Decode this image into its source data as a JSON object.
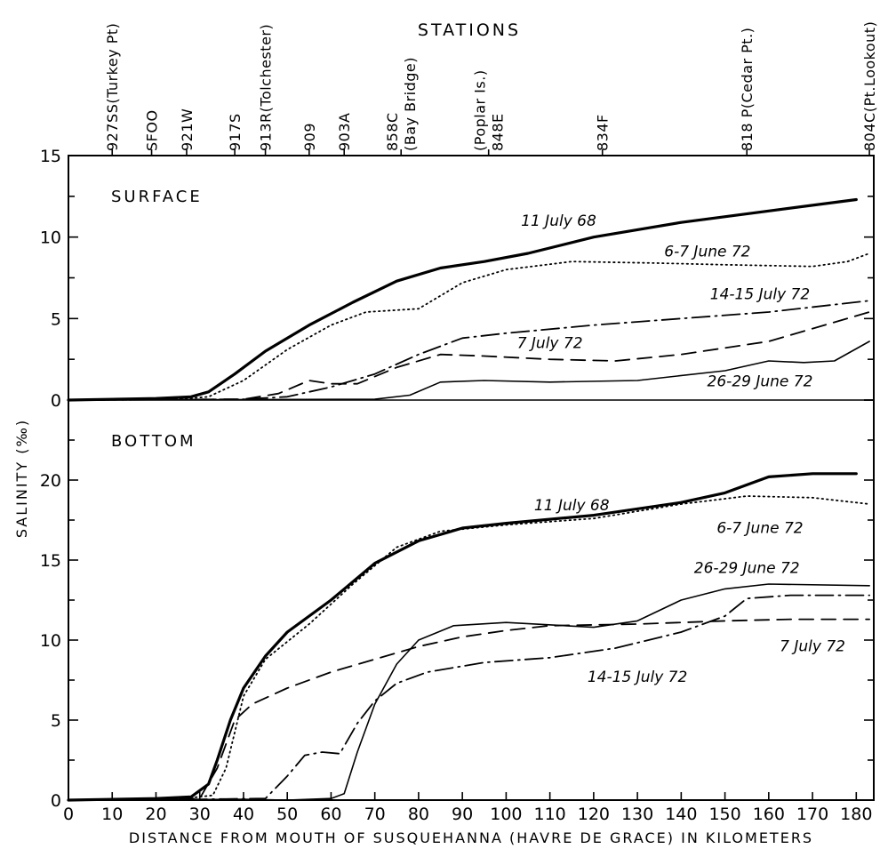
{
  "chart_data": {
    "type": "line",
    "header": "STATIONS",
    "xlabel": "DISTANCE FROM MOUTH OF SUSQUEHANNA (HAVRE DE GRACE) IN KILOMETERS",
    "ylabel": "SALINITY (‰)",
    "x_ticks": [
      0,
      10,
      20,
      30,
      40,
      50,
      60,
      70,
      80,
      90,
      100,
      110,
      120,
      130,
      140,
      150,
      160,
      170,
      180
    ],
    "xlim": [
      0,
      184
    ],
    "stations": [
      {
        "x": 10,
        "lines": [
          "927SS(Turkey Pt)"
        ]
      },
      {
        "x": 19,
        "lines": [
          "SFOO"
        ]
      },
      {
        "x": 27,
        "lines": [
          "921W"
        ]
      },
      {
        "x": 38,
        "lines": [
          "917S"
        ]
      },
      {
        "x": 45,
        "lines": [
          "913R(Tolchester)"
        ]
      },
      {
        "x": 55,
        "lines": [
          "909"
        ]
      },
      {
        "x": 63,
        "lines": [
          "903A"
        ]
      },
      {
        "x": 76,
        "lines": [
          "858C",
          "(Bay Bridge)"
        ]
      },
      {
        "x": 96,
        "lines": [
          "(Poplar Is.)",
          "848E"
        ]
      },
      {
        "x": 122,
        "lines": [
          "834F"
        ]
      },
      {
        "x": 155,
        "lines": [
          "818 P(Cedar Pt.)"
        ]
      },
      {
        "x": 183,
        "lines": [
          "804C(Pt.Lookout)"
        ]
      }
    ],
    "panels": [
      {
        "label": "SURFACE",
        "ylim": [
          0,
          15
        ],
        "y_ticks": [
          0,
          5,
          10,
          15
        ],
        "series": [
          {
            "name": "11 July 68",
            "style": "solid-thick",
            "points": [
              [
                0,
                0
              ],
              [
                20,
                0.1
              ],
              [
                28,
                0.2
              ],
              [
                32,
                0.5
              ],
              [
                38,
                1.6
              ],
              [
                45,
                3.0
              ],
              [
                55,
                4.6
              ],
              [
                65,
                6.0
              ],
              [
                75,
                7.3
              ],
              [
                85,
                8.1
              ],
              [
                95,
                8.5
              ],
              [
                105,
                9.0
              ],
              [
                120,
                10.0
              ],
              [
                140,
                10.9
              ],
              [
                160,
                11.6
              ],
              [
                180,
                12.3
              ]
            ]
          },
          {
            "name": "6-7 June 72",
            "style": "dotted",
            "points": [
              [
                0,
                0
              ],
              [
                25,
                0.05
              ],
              [
                32,
                0.2
              ],
              [
                40,
                1.2
              ],
              [
                50,
                3.1
              ],
              [
                60,
                4.6
              ],
              [
                68,
                5.4
              ],
              [
                80,
                5.6
              ],
              [
                90,
                7.2
              ],
              [
                100,
                8.0
              ],
              [
                115,
                8.5
              ],
              [
                135,
                8.4
              ],
              [
                150,
                8.3
              ],
              [
                170,
                8.2
              ],
              [
                178,
                8.5
              ],
              [
                183,
                9.0
              ]
            ]
          },
          {
            "name": "14-15 July 72",
            "style": "dash-dot",
            "points": [
              [
                0,
                0
              ],
              [
                40,
                0.05
              ],
              [
                50,
                0.2
              ],
              [
                60,
                0.8
              ],
              [
                70,
                1.6
              ],
              [
                80,
                2.8
              ],
              [
                90,
                3.8
              ],
              [
                100,
                4.1
              ],
              [
                120,
                4.6
              ],
              [
                140,
                5.0
              ],
              [
                160,
                5.4
              ],
              [
                183,
                6.1
              ]
            ]
          },
          {
            "name": "7 July 72",
            "style": "dashed",
            "points": [
              [
                0,
                0
              ],
              [
                40,
                0.05
              ],
              [
                48,
                0.4
              ],
              [
                55,
                1.2
              ],
              [
                60,
                1.0
              ],
              [
                66,
                1.0
              ],
              [
                75,
                2.0
              ],
              [
                85,
                2.8
              ],
              [
                95,
                2.7
              ],
              [
                110,
                2.5
              ],
              [
                125,
                2.4
              ],
              [
                140,
                2.8
              ],
              [
                160,
                3.6
              ],
              [
                183,
                5.4
              ]
            ]
          },
          {
            "name": "26-29 June 72",
            "style": "solid-thin",
            "points": [
              [
                0,
                0
              ],
              [
                70,
                0.05
              ],
              [
                78,
                0.3
              ],
              [
                85,
                1.1
              ],
              [
                95,
                1.2
              ],
              [
                110,
                1.1
              ],
              [
                130,
                1.2
              ],
              [
                150,
                1.8
              ],
              [
                160,
                2.4
              ],
              [
                168,
                2.3
              ],
              [
                175,
                2.4
              ],
              [
                183,
                3.6
              ]
            ]
          }
        ]
      },
      {
        "label": "BOTTOM",
        "ylim": [
          0,
          25
        ],
        "y_ticks": [
          0,
          5,
          10,
          15,
          20
        ],
        "series": [
          {
            "name": "11 July 68",
            "style": "solid-thick",
            "points": [
              [
                0,
                0
              ],
              [
                20,
                0.1
              ],
              [
                28,
                0.2
              ],
              [
                32,
                1.0
              ],
              [
                34,
                2.5
              ],
              [
                37,
                5.0
              ],
              [
                40,
                7.0
              ],
              [
                45,
                9.0
              ],
              [
                50,
                10.5
              ],
              [
                60,
                12.5
              ],
              [
                70,
                14.8
              ],
              [
                80,
                16.2
              ],
              [
                90,
                17.0
              ],
              [
                100,
                17.3
              ],
              [
                120,
                17.8
              ],
              [
                140,
                18.6
              ],
              [
                150,
                19.2
              ],
              [
                160,
                20.2
              ],
              [
                170,
                20.4
              ],
              [
                180,
                20.4
              ]
            ]
          },
          {
            "name": "6-7 June 72",
            "style": "dotted",
            "points": [
              [
                0,
                0
              ],
              [
                25,
                0.05
              ],
              [
                33,
                0.3
              ],
              [
                36,
                2.0
              ],
              [
                40,
                6.5
              ],
              [
                45,
                8.8
              ],
              [
                55,
                11.0
              ],
              [
                65,
                13.5
              ],
              [
                75,
                15.8
              ],
              [
                85,
                16.8
              ],
              [
                100,
                17.2
              ],
              [
                120,
                17.6
              ],
              [
                140,
                18.5
              ],
              [
                155,
                19.0
              ],
              [
                170,
                18.9
              ],
              [
                183,
                18.5
              ]
            ]
          },
          {
            "name": "26-29 June 72",
            "style": "solid-thin",
            "points": [
              [
                0,
                0
              ],
              [
                40,
                0.05
              ],
              [
                50,
                0
              ],
              [
                60,
                0.1
              ],
              [
                63,
                0.4
              ],
              [
                66,
                3.0
              ],
              [
                70,
                6.0
              ],
              [
                75,
                8.5
              ],
              [
                80,
                10.0
              ],
              [
                88,
                10.9
              ],
              [
                100,
                11.1
              ],
              [
                120,
                10.8
              ],
              [
                130,
                11.2
              ],
              [
                140,
                12.5
              ],
              [
                150,
                13.2
              ],
              [
                160,
                13.5
              ],
              [
                183,
                13.4
              ]
            ]
          },
          {
            "name": "7 July 72",
            "style": "dashed",
            "points": [
              [
                0,
                0
              ],
              [
                30,
                0.1
              ],
              [
                34,
                2.0
              ],
              [
                38,
                5.0
              ],
              [
                42,
                6.0
              ],
              [
                50,
                7.0
              ],
              [
                60,
                8.0
              ],
              [
                70,
                8.8
              ],
              [
                80,
                9.6
              ],
              [
                90,
                10.2
              ],
              [
                100,
                10.6
              ],
              [
                110,
                10.9
              ],
              [
                130,
                11.0
              ],
              [
                150,
                11.2
              ],
              [
                165,
                11.3
              ],
              [
                183,
                11.3
              ]
            ]
          },
          {
            "name": "14-15 July 72",
            "style": "dash-dot",
            "points": [
              [
                0,
                0
              ],
              [
                30,
                0.05
              ],
              [
                45,
                0.1
              ],
              [
                50,
                1.5
              ],
              [
                54,
                2.8
              ],
              [
                58,
                3.0
              ],
              [
                62,
                2.9
              ],
              [
                66,
                4.8
              ],
              [
                70,
                6.2
              ],
              [
                75,
                7.3
              ],
              [
                82,
                8.0
              ],
              [
                95,
                8.6
              ],
              [
                110,
                8.9
              ],
              [
                125,
                9.5
              ],
              [
                140,
                10.5
              ],
              [
                150,
                11.5
              ],
              [
                155,
                12.6
              ],
              [
                165,
                12.8
              ],
              [
                183,
                12.8
              ]
            ]
          }
        ]
      }
    ],
    "annotations": [
      {
        "panel": 0,
        "series": "11 July 68",
        "text": "11 July 68",
        "x": 112,
        "y": 10.7
      },
      {
        "panel": 0,
        "series": "6-7 June 72",
        "text": "6-7 June 72",
        "x": 146,
        "y": 8.8
      },
      {
        "panel": 0,
        "series": "14-15 July 72",
        "text": "14-15 July 72",
        "x": 158,
        "y": 6.2
      },
      {
        "panel": 0,
        "series": "7 July 72",
        "text": "7 July 72",
        "x": 110,
        "y": 3.2
      },
      {
        "panel": 0,
        "series": "26-29 June 72",
        "text": "26-29 June 72",
        "x": 158,
        "y": 0.85
      },
      {
        "panel": 1,
        "series": "11 July 68",
        "text": "11 July 68",
        "x": 115,
        "y": 18.1
      },
      {
        "panel": 1,
        "series": "6-7 June 72",
        "text": "6-7 June 72",
        "x": 158,
        "y": 16.7
      },
      {
        "panel": 1,
        "series": "26-29 June 72",
        "text": "26-29 June 72",
        "x": 155,
        "y": 14.2
      },
      {
        "panel": 1,
        "series": "7 July 72",
        "text": "7 July 72",
        "x": 170,
        "y": 9.3
      },
      {
        "panel": 1,
        "series": "14-15 July 72",
        "text": "14-15 July 72",
        "x": 130,
        "y": 7.4
      }
    ]
  }
}
